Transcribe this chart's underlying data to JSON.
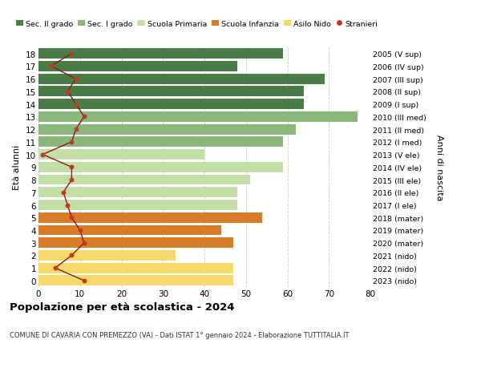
{
  "ages": [
    18,
    17,
    16,
    15,
    14,
    13,
    12,
    11,
    10,
    9,
    8,
    7,
    6,
    5,
    4,
    3,
    2,
    1,
    0
  ],
  "bar_values": [
    59,
    48,
    69,
    64,
    64,
    77,
    62,
    59,
    40,
    59,
    51,
    48,
    48,
    54,
    44,
    47,
    33,
    47,
    47
  ],
  "bar_colors": [
    "#4a7c47",
    "#4a7c47",
    "#4a7c47",
    "#4a7c47",
    "#4a7c47",
    "#8ab87a",
    "#8ab87a",
    "#8ab87a",
    "#c4dea8",
    "#c4dea8",
    "#c4dea8",
    "#c4dea8",
    "#c4dea8",
    "#d97c2a",
    "#d97c2a",
    "#d97c2a",
    "#f5d96a",
    "#f5d96a",
    "#f5d96a"
  ],
  "stranieri_values": [
    8,
    3,
    9,
    7,
    9,
    11,
    9,
    8,
    1,
    8,
    8,
    6,
    7,
    8,
    10,
    11,
    8,
    4,
    11
  ],
  "right_labels": [
    "2005 (V sup)",
    "2006 (IV sup)",
    "2007 (III sup)",
    "2008 (II sup)",
    "2009 (I sup)",
    "2010 (III med)",
    "2011 (II med)",
    "2012 (I med)",
    "2013 (V ele)",
    "2014 (IV ele)",
    "2015 (III ele)",
    "2016 (II ele)",
    "2017 (I ele)",
    "2018 (mater)",
    "2019 (mater)",
    "2020 (mater)",
    "2021 (nido)",
    "2022 (nido)",
    "2023 (nido)"
  ],
  "legend_labels": [
    "Sec. II grado",
    "Sec. I grado",
    "Scuola Primaria",
    "Scuola Infanzia",
    "Asilo Nido",
    "Stranieri"
  ],
  "legend_colors": [
    "#4a7c47",
    "#8ab87a",
    "#c4dea8",
    "#d97c2a",
    "#f5d96a",
    "#c0392b"
  ],
  "title": "Popolazione per età scolastica - 2024",
  "subtitle": "COMUNE DI CAVARIA CON PREMEZZO (VA) - Dati ISTAT 1° gennaio 2024 - Elaborazione TUTTITALIA.IT",
  "ylabel": "Età alunni",
  "ylabel_right": "Anni di nascita",
  "xlim": [
    0,
    80
  ],
  "xticks": [
    0,
    10,
    20,
    30,
    40,
    50,
    60,
    70,
    80
  ],
  "bg_color": "#ffffff",
  "bar_height": 0.82,
  "stranieri_color": "#c0392b",
  "stranieri_line_color": "#8b1a1a"
}
